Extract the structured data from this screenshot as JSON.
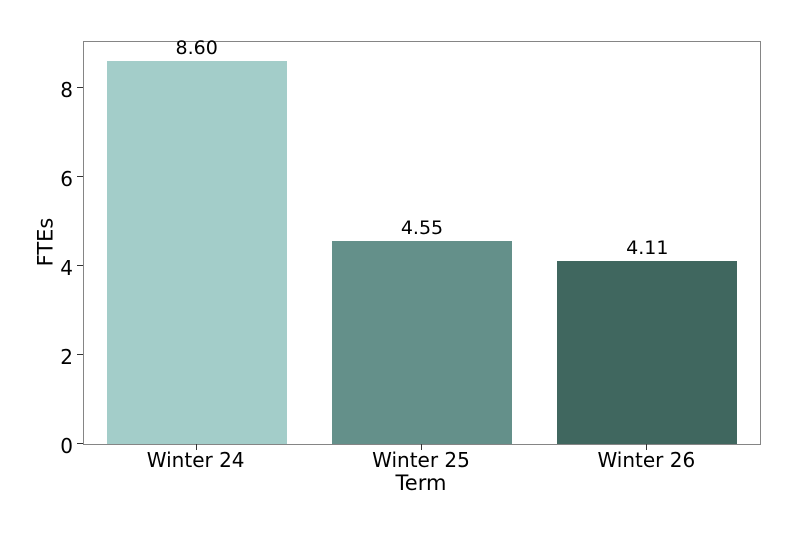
{
  "chart_data": {
    "type": "bar",
    "categories": [
      "Winter 24",
      "Winter 25",
      "Winter 26"
    ],
    "values": [
      8.6,
      4.55,
      4.11
    ],
    "value_labels": [
      "8.60",
      "4.55",
      "4.11"
    ],
    "bar_colors": [
      "#a3cdc9",
      "#64908a",
      "#40675f"
    ],
    "xlabel": "Term",
    "ylabel": "FTEs",
    "ylim": [
      0,
      9.03
    ],
    "yticks": [
      0,
      2,
      4,
      6,
      8
    ],
    "ytick_labels": [
      "0",
      "2",
      "4",
      "6",
      "8"
    ],
    "grid": false,
    "legend": "none",
    "bar_width_fraction": 0.8
  },
  "colors": {
    "background": "#ffffff",
    "spine": "#858585",
    "tick": "#333333",
    "text": "#000000"
  }
}
